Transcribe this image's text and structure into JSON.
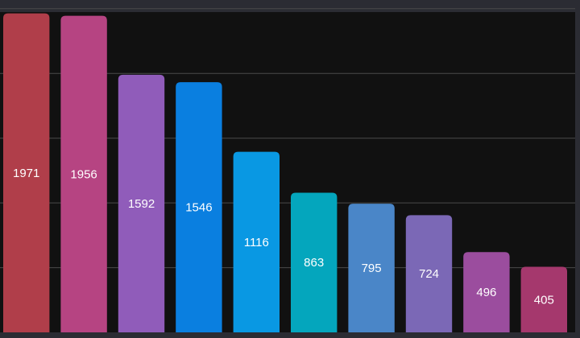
{
  "chart_data": {
    "type": "bar",
    "values": [
      1971,
      1956,
      1592,
      1546,
      1116,
      863,
      795,
      724,
      496,
      405
    ],
    "colors": [
      "#b03e4a",
      "#b64482",
      "#905cba",
      "#0a7fe0",
      "#0998e3",
      "#04a6bd",
      "#4a86c8",
      "#7b68b6",
      "#9b4d9e",
      "#a5386d"
    ],
    "ylim": [
      0,
      2000
    ],
    "grid": true,
    "background": "#111111",
    "frame": "#2b2c33",
    "label_color": "#ffffff",
    "gridline_color": "#4a4a4a"
  }
}
